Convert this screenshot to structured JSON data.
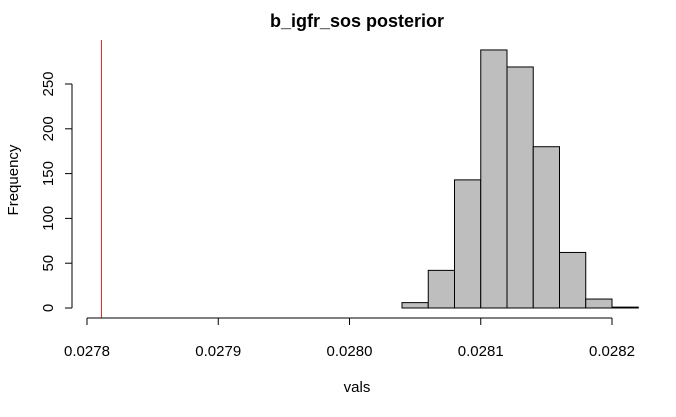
{
  "chart_data": {
    "type": "bar",
    "title": "b_igfr_sos posterior",
    "xlabel": "vals",
    "ylabel": "Frequency",
    "bin_width": 2e-05,
    "bins": [
      {
        "start": 0.02804,
        "end": 0.02806,
        "count": 6
      },
      {
        "start": 0.02806,
        "end": 0.02808,
        "count": 42
      },
      {
        "start": 0.02808,
        "end": 0.0281,
        "count": 143
      },
      {
        "start": 0.0281,
        "end": 0.02812,
        "count": 288
      },
      {
        "start": 0.02812,
        "end": 0.02814,
        "count": 269
      },
      {
        "start": 0.02814,
        "end": 0.02816,
        "count": 180
      },
      {
        "start": 0.02816,
        "end": 0.02818,
        "count": 62
      },
      {
        "start": 0.02818,
        "end": 0.0282,
        "count": 10
      },
      {
        "start": 0.0282,
        "end": 0.02822,
        "count": 1
      }
    ],
    "xlim": [
      0.02781,
      0.02822
    ],
    "ylim": [
      0,
      300
    ],
    "x_ticks": [
      0.0278,
      0.0279,
      0.028,
      0.0281,
      0.0282
    ],
    "x_tick_labels": [
      "0.0278",
      "0.0279",
      "0.0280",
      "0.0281",
      "0.0282"
    ],
    "y_ticks": [
      0,
      50,
      100,
      150,
      200,
      250
    ],
    "y_tick_labels": [
      "0",
      "50",
      "100",
      "150",
      "200",
      "250"
    ],
    "reference_line": {
      "x": 0.027811,
      "color": "#d62728"
    },
    "bar_fill": "#bebebe",
    "bar_stroke": "#000000",
    "grid": false,
    "legend": "none"
  }
}
